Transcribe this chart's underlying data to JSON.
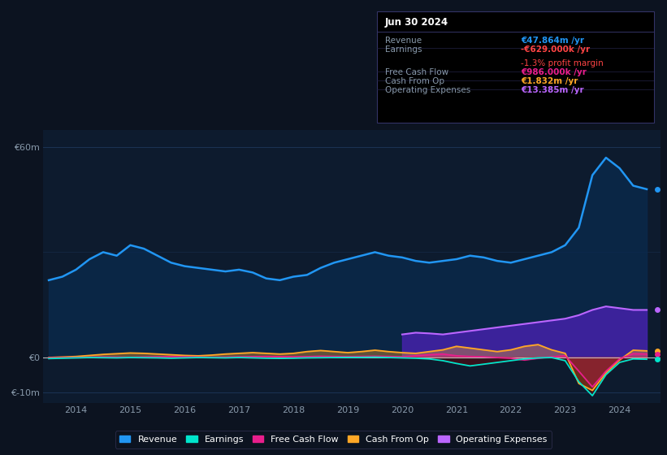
{
  "bg_color": "#0c1320",
  "plot_bg_color": "#0d1b2e",
  "grid_color": "#1e3a5f",
  "text_color": "#8899aa",
  "white_color": "#ffffff",
  "years_x": [
    2013.5,
    2013.75,
    2014.0,
    2014.25,
    2014.5,
    2014.75,
    2015.0,
    2015.25,
    2015.5,
    2015.75,
    2016.0,
    2016.25,
    2016.5,
    2016.75,
    2017.0,
    2017.25,
    2017.5,
    2017.75,
    2018.0,
    2018.25,
    2018.5,
    2018.75,
    2019.0,
    2019.25,
    2019.5,
    2019.75,
    2020.0,
    2020.25,
    2020.5,
    2020.75,
    2021.0,
    2021.25,
    2021.5,
    2021.75,
    2022.0,
    2022.25,
    2022.5,
    2022.75,
    2023.0,
    2023.25,
    2023.5,
    2023.75,
    2024.0,
    2024.25,
    2024.5
  ],
  "revenue": [
    22,
    23,
    25,
    28,
    30,
    29,
    32,
    31,
    29,
    27,
    26,
    25.5,
    25,
    24.5,
    25,
    24.2,
    22.5,
    22,
    23,
    23.5,
    25.5,
    27,
    28,
    29,
    30,
    29,
    28.5,
    27.5,
    27,
    27.5,
    28,
    29,
    28.5,
    27.5,
    27,
    28,
    29,
    30,
    32,
    37,
    52,
    57,
    54,
    49,
    48
  ],
  "earnings": [
    -0.4,
    -0.3,
    -0.2,
    -0.1,
    -0.15,
    -0.2,
    -0.1,
    -0.15,
    -0.2,
    -0.3,
    -0.2,
    -0.1,
    -0.15,
    -0.2,
    -0.1,
    -0.2,
    -0.3,
    -0.35,
    -0.3,
    -0.2,
    -0.15,
    -0.1,
    -0.05,
    -0.05,
    0.0,
    -0.1,
    -0.2,
    -0.3,
    -0.5,
    -1.0,
    -1.8,
    -2.5,
    -2.0,
    -1.5,
    -1.0,
    -0.5,
    -0.2,
    -0.1,
    -1.0,
    -7.0,
    -11.0,
    -5.0,
    -1.5,
    -0.5,
    -0.6
  ],
  "free_cash_flow": [
    -0.2,
    -0.15,
    -0.1,
    0.0,
    0.05,
    0.0,
    -0.05,
    0.05,
    0.1,
    0.15,
    0.1,
    0.05,
    -0.05,
    0.0,
    0.1,
    0.15,
    0.2,
    0.15,
    0.1,
    0.15,
    0.25,
    0.2,
    0.15,
    0.2,
    0.25,
    0.2,
    0.1,
    0.4,
    0.7,
    0.9,
    0.4,
    0.2,
    0.1,
    -0.1,
    -0.3,
    -0.8,
    -0.3,
    0.1,
    0.4,
    -4.0,
    -8.5,
    -4.0,
    -0.5,
    1.0,
    0.9
  ],
  "cash_from_op": [
    -0.1,
    0.05,
    0.2,
    0.5,
    0.8,
    1.0,
    1.2,
    1.1,
    0.9,
    0.7,
    0.5,
    0.4,
    0.6,
    0.9,
    1.1,
    1.3,
    1.1,
    0.9,
    1.1,
    1.6,
    1.9,
    1.6,
    1.3,
    1.6,
    2.0,
    1.6,
    1.3,
    1.1,
    1.6,
    2.1,
    3.1,
    2.6,
    2.1,
    1.6,
    2.1,
    3.1,
    3.6,
    2.1,
    1.1,
    -7.5,
    -9.5,
    -4.5,
    -0.8,
    2.0,
    1.8
  ],
  "op_expenses_x": [
    2020.0,
    2020.25,
    2020.5,
    2020.75,
    2021.0,
    2021.25,
    2021.5,
    2021.75,
    2022.0,
    2022.25,
    2022.5,
    2022.75,
    2023.0,
    2023.25,
    2023.5,
    2023.75,
    2024.0,
    2024.25,
    2024.5
  ],
  "op_expenses": [
    6.5,
    7.0,
    6.8,
    6.5,
    7.0,
    7.5,
    8.0,
    8.5,
    9.0,
    9.5,
    10.0,
    10.5,
    11.0,
    12.0,
    13.5,
    14.5,
    14.0,
    13.5,
    13.5
  ],
  "revenue_color": "#2196f3",
  "earnings_color": "#00e5cc",
  "free_cash_flow_color": "#e91e8c",
  "cash_from_op_color": "#ffa726",
  "op_expenses_color": "#bb66ff",
  "op_expenses_fill": "#4422aa",
  "revenue_fill": "#0a2a4e",
  "ylim": [
    -13,
    65
  ],
  "xlim": [
    2013.4,
    2024.75
  ],
  "xtick_years": [
    2014,
    2015,
    2016,
    2017,
    2018,
    2019,
    2020,
    2021,
    2022,
    2023,
    2024
  ],
  "info_box": {
    "title": "Jun 30 2024",
    "rows": [
      {
        "label": "Revenue",
        "value": "€47.864m /yr",
        "value_color": "#2196f3",
        "extra": null,
        "extra_color": null
      },
      {
        "label": "Earnings",
        "value": "-€629.000k /yr",
        "value_color": "#ff4444",
        "extra": "-1.3% profit margin",
        "extra_color": "#ff4444"
      },
      {
        "label": "Free Cash Flow",
        "value": "€986.000k /yr",
        "value_color": "#e91e8c",
        "extra": null,
        "extra_color": null
      },
      {
        "label": "Cash From Op",
        "value": "€1.832m /yr",
        "value_color": "#ffa726",
        "extra": null,
        "extra_color": null
      },
      {
        "label": "Operating Expenses",
        "value": "€13.385m /yr",
        "value_color": "#bb66ff",
        "extra": null,
        "extra_color": null
      }
    ]
  },
  "legend_items": [
    {
      "label": "Revenue",
      "color": "#2196f3"
    },
    {
      "label": "Earnings",
      "color": "#00e5cc"
    },
    {
      "label": "Free Cash Flow",
      "color": "#e91e8c"
    },
    {
      "label": "Cash From Op",
      "color": "#ffa726"
    },
    {
      "label": "Operating Expenses",
      "color": "#bb66ff"
    }
  ]
}
